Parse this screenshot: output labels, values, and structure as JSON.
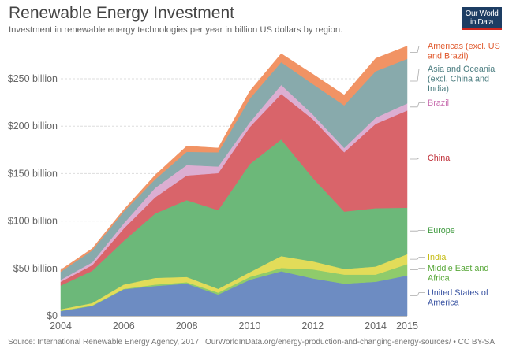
{
  "header": {
    "title": "Renewable Energy Investment",
    "subtitle": "Investment in renewable energy technologies per year in billion US dollars by region.",
    "logo_line1": "Our World",
    "logo_line2": "in Data"
  },
  "footer": {
    "source": "Source: International Renewable Energy Agency, 2017",
    "url_license": "OurWorldInData.org/energy-production-and-changing-energy-sources/ • CC BY-SA"
  },
  "colors": {
    "logo_bg": "#1d3d63",
    "logo_accent": "#ce261e"
  },
  "chart_data": {
    "type": "area",
    "stacked": true,
    "title": "Renewable Energy Investment",
    "subtitle": "Investment in renewable energy technologies per year in billion US dollars by region.",
    "xlabel": "",
    "ylabel": "",
    "x": [
      2004,
      2005,
      2006,
      2007,
      2008,
      2009,
      2010,
      2011,
      2012,
      2013,
      2014,
      2015
    ],
    "x_ticks": [
      "2004",
      "2006",
      "2008",
      "2010",
      "2012",
      "2014",
      "2015"
    ],
    "x_tick_values": [
      2004,
      2006,
      2008,
      2010,
      2012,
      2014,
      2015
    ],
    "y_ticks": [
      "$0",
      "$50 billion",
      "$100 billion",
      "$150 billion",
      "$200 billion",
      "$250 billion"
    ],
    "y_tick_values": [
      0,
      50,
      100,
      150,
      200,
      250
    ],
    "ylim": [
      0,
      250
    ],
    "xlim": [
      2004,
      2015
    ],
    "grid": "horizontal-dashed",
    "legend": "right-inline",
    "units": "billion US dollars",
    "series": [
      {
        "name": "United States of America",
        "color": "#6d8cc2",
        "label_color": "#3b55a3",
        "values": [
          5,
          10.5,
          28,
          31.5,
          34,
          22.5,
          38,
          47,
          39.5,
          34,
          36,
          42.5
        ]
      },
      {
        "name": "Middle East and Africa",
        "color": "#8fcb6b",
        "label_color": "#59a83a",
        "values": [
          0.5,
          0.5,
          0.5,
          1.5,
          1.5,
          2,
          3,
          3.5,
          9.5,
          9.5,
          7.5,
          12
        ]
      },
      {
        "name": "India",
        "color": "#e2dc59",
        "label_color": "#c6bc13",
        "values": [
          1.5,
          2.5,
          4.5,
          7,
          5.5,
          4,
          5,
          12.5,
          8.5,
          6,
          8.5,
          10.5
        ]
      },
      {
        "name": "Europe",
        "color": "#6cb879",
        "label_color": "#3f9a3f",
        "values": [
          25,
          34,
          46,
          68,
          81,
          83,
          114,
          123,
          88,
          60.5,
          61.5,
          49
        ]
      },
      {
        "name": "China",
        "color": "#d9646a",
        "label_color": "#c0313a",
        "values": [
          4,
          6,
          13,
          17,
          26,
          39,
          39,
          48,
          62,
          62.5,
          89,
          102.5
        ]
      },
      {
        "name": "Brazil",
        "color": "#dcaed2",
        "label_color": "#c970b0",
        "values": [
          2,
          3,
          5.5,
          10,
          11,
          7,
          5,
          9.5,
          5,
          4.5,
          6.5,
          7.5
        ]
      },
      {
        "name": "Asia and Oceania (excl. China and India)",
        "color": "#88aaac",
        "label_color": "#4b7d80",
        "values": [
          8.5,
          12.5,
          12.5,
          9,
          14,
          15,
          25,
          24,
          32,
          45,
          49,
          47
        ]
      },
      {
        "name": "Americas (excl. US and Brazil)",
        "color": "#f19364",
        "label_color": "#e05a2e",
        "values": [
          2,
          2,
          2,
          4.5,
          6,
          4.5,
          8,
          9,
          10.5,
          11,
          13.5,
          13.5
        ]
      }
    ],
    "legend_labels": [
      {
        "series": "Americas (excl. US and Brazil)",
        "lines": [
          "Americas (excl. US",
          "and Brazil)"
        ]
      },
      {
        "series": "Asia and Oceania (excl. China and India)",
        "lines": [
          "Asia and Oceania",
          "(excl. China and",
          "India)"
        ]
      },
      {
        "series": "Brazil",
        "lines": [
          "Brazil"
        ]
      },
      {
        "series": "China",
        "lines": [
          "China"
        ]
      },
      {
        "series": "Europe",
        "lines": [
          "Europe"
        ]
      },
      {
        "series": "India",
        "lines": [
          "India"
        ]
      },
      {
        "series": "Middle East and Africa",
        "lines": [
          "Middle East and",
          "Africa"
        ]
      },
      {
        "series": "United States of America",
        "lines": [
          "United States of",
          "America"
        ]
      }
    ]
  }
}
